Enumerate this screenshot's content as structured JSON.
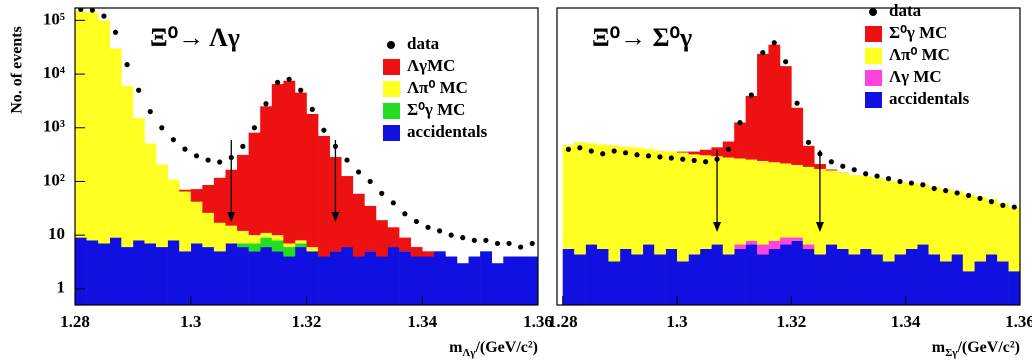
{
  "chart_data": [
    {
      "type": "histogram",
      "title": "Ξ⁰→ Λγ",
      "y_label": "No. of events",
      "x_label": {
        "symbol": "m",
        "subscript": "Λγ",
        "unit": "/(GeV/c²)"
      },
      "bins": [
        1.28,
        1.282,
        1.284,
        1.286,
        1.288,
        1.29,
        1.292,
        1.294,
        1.296,
        1.298,
        1.3,
        1.302,
        1.304,
        1.306,
        1.308,
        1.31,
        1.312,
        1.314,
        1.316,
        1.318,
        1.32,
        1.322,
        1.324,
        1.326,
        1.328,
        1.33,
        1.332,
        1.334,
        1.336,
        1.338,
        1.34,
        1.342,
        1.344,
        1.346,
        1.348,
        1.35,
        1.352,
        1.354,
        1.356,
        1.358,
        1.36
      ],
      "xlim": [
        1.28,
        1.36
      ],
      "xticks": [
        1.28,
        1.3,
        1.32,
        1.34,
        1.36
      ],
      "ylim": [
        0.5,
        170000
      ],
      "yticks": [
        1,
        10,
        {
          "value": 100,
          "label": "10²"
        },
        {
          "value": 1000,
          "label": "10³"
        },
        {
          "value": 10000,
          "label": "10⁴"
        },
        {
          "value": 100000,
          "label": "10⁵"
        }
      ],
      "log_y": true,
      "stacked": true,
      "legend": "upper right",
      "cuts": [
        1.307,
        1.325
      ],
      "data": {
        "name": "data",
        "color": "#000000",
        "values": [
          160000,
          155000,
          120000,
          60000,
          15000,
          5000,
          2000,
          1000,
          600,
          400,
          300,
          250,
          230,
          280,
          450,
          1000,
          2800,
          7000,
          8000,
          5000,
          2200,
          900,
          450,
          250,
          150,
          100,
          60,
          40,
          25,
          18,
          14,
          12,
          10,
          9,
          8,
          8,
          7,
          7,
          6,
          7
        ]
      },
      "series": [
        {
          "name": "ΛγMC",
          "color": "#ee1111",
          "values": [
            0,
            0,
            0,
            0,
            0,
            0,
            0,
            0,
            0,
            5,
            30,
            60,
            100,
            150,
            300,
            800,
            2500,
            6500,
            7500,
            4500,
            1800,
            700,
            280,
            120,
            55,
            30,
            15,
            8,
            4,
            2,
            1,
            0,
            0,
            0,
            0,
            0,
            0,
            0,
            0,
            0
          ]
        },
        {
          "name": "Λπ⁰ MC",
          "color": "#ffff22",
          "values": [
            150000,
            140000,
            100000,
            30000,
            6000,
            1500,
            500,
            200,
            100,
            60,
            35,
            20,
            12,
            8,
            5,
            3,
            2,
            2,
            1,
            1,
            1,
            0,
            0,
            0,
            0,
            0,
            0,
            0,
            0,
            0,
            0,
            0,
            0,
            0,
            0,
            0,
            0,
            0,
            0,
            0
          ]
        },
        {
          "name": "Σ⁰γ MC",
          "color": "#22dd22",
          "values": [
            0,
            0,
            0,
            0,
            0,
            0,
            0,
            0,
            0,
            0,
            0,
            0,
            0,
            0,
            1,
            2,
            3,
            3,
            2,
            1,
            0,
            0,
            0,
            0,
            0,
            0,
            0,
            0,
            0,
            0,
            0,
            0,
            0,
            0,
            0,
            0,
            0,
            0,
            0,
            0
          ]
        },
        {
          "name": "accidentals",
          "color": "#1010e0",
          "values": [
            9,
            8,
            7,
            9,
            6,
            8,
            7,
            6,
            8,
            5,
            7,
            6,
            5,
            7,
            6,
            5,
            6,
            5,
            4,
            6,
            5,
            4,
            5,
            6,
            4,
            5,
            4,
            6,
            5,
            4,
            4,
            5,
            4,
            3,
            4,
            5,
            3,
            4,
            4,
            4
          ]
        }
      ]
    },
    {
      "type": "histogram",
      "title": "Ξ⁰→ Σ⁰γ",
      "x_label": {
        "symbol": "m",
        "subscript": "Σγ",
        "unit": "/(GeV/c²)"
      },
      "bins": [
        1.28,
        1.282,
        1.284,
        1.286,
        1.288,
        1.29,
        1.292,
        1.294,
        1.296,
        1.298,
        1.3,
        1.302,
        1.304,
        1.306,
        1.308,
        1.31,
        1.312,
        1.314,
        1.316,
        1.318,
        1.32,
        1.322,
        1.324,
        1.326,
        1.328,
        1.33,
        1.332,
        1.334,
        1.336,
        1.338,
        1.34,
        1.342,
        1.344,
        1.346,
        1.348,
        1.35,
        1.352,
        1.354,
        1.356,
        1.358,
        1.36
      ],
      "xlim": [
        1.279,
        1.36
      ],
      "xticks": [
        1.28,
        1.3,
        1.32,
        1.34,
        1.36
      ],
      "ylim": [
        0.5,
        100000
      ],
      "log_y": true,
      "stacked": true,
      "legend": "upper right",
      "cuts": [
        1.307,
        1.325
      ],
      "data": {
        "name": "data",
        "color": "#000000",
        "values": [
          300,
          320,
          280,
          250,
          280,
          260,
          240,
          230,
          220,
          210,
          200,
          190,
          180,
          200,
          300,
          900,
          2800,
          16000,
          24000,
          11000,
          2000,
          400,
          250,
          180,
          150,
          130,
          110,
          100,
          90,
          80,
          75,
          70,
          60,
          55,
          50,
          45,
          40,
          35,
          30,
          28
        ]
      },
      "series": [
        {
          "name": "Σ⁰γ MC",
          "color": "#ee1111",
          "values": [
            0,
            0,
            0,
            0,
            0,
            0,
            0,
            0,
            0,
            0,
            10,
            30,
            60,
            100,
            200,
            700,
            2500,
            15000,
            22000,
            9000,
            1500,
            200,
            30,
            5,
            1,
            0,
            0,
            0,
            0,
            0,
            0,
            0,
            0,
            0,
            0,
            0,
            0,
            0,
            0,
            0
          ]
        },
        {
          "name": "Λπ⁰ MC",
          "color": "#ffff22",
          "values": [
            350,
            400,
            380,
            360,
            350,
            330,
            320,
            300,
            280,
            270,
            260,
            240,
            230,
            220,
            210,
            200,
            190,
            180,
            170,
            160,
            150,
            140,
            130,
            120,
            110,
            100,
            95,
            90,
            80,
            75,
            70,
            65,
            60,
            55,
            50,
            45,
            40,
            35,
            30,
            25
          ]
        },
        {
          "name": "Λγ MC",
          "color": "#ff44dd",
          "values": [
            0,
            0,
            0,
            0,
            0,
            0,
            0,
            0,
            0,
            0,
            0,
            0,
            0,
            0,
            0,
            1,
            1,
            2,
            2,
            2,
            1,
            1,
            0,
            0,
            0,
            0,
            0,
            0,
            0,
            0,
            0,
            0,
            0,
            0,
            0,
            0,
            0,
            0,
            0,
            0
          ]
        },
        {
          "name": "accidentals",
          "color": "#1010e0",
          "values": [
            5,
            4,
            6,
            5,
            3,
            5,
            4,
            6,
            4,
            5,
            3,
            4,
            5,
            6,
            4,
            5,
            6,
            4,
            5,
            6,
            7,
            5,
            4,
            6,
            5,
            4,
            5,
            4,
            3,
            4,
            5,
            6,
            4,
            3,
            4,
            2,
            3,
            4,
            3,
            2
          ]
        }
      ]
    }
  ]
}
